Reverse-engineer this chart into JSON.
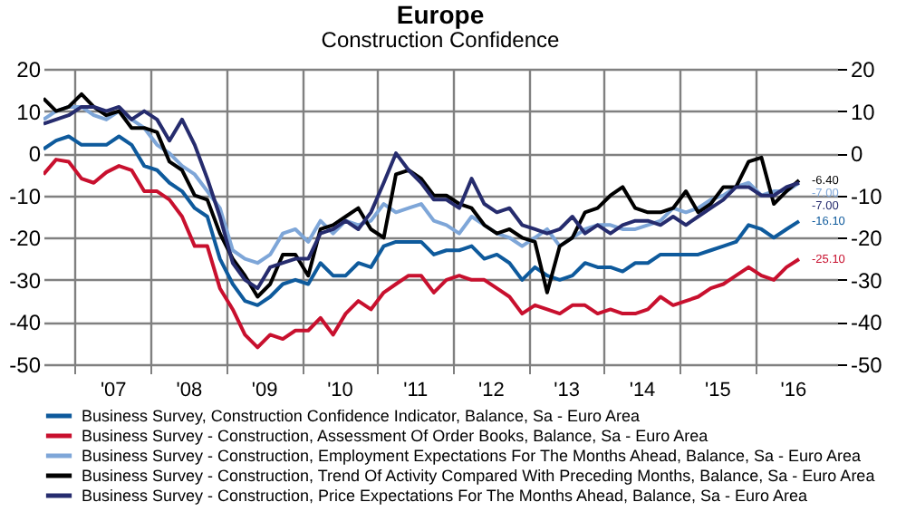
{
  "chart_data": {
    "type": "line",
    "title": "Europe",
    "subtitle": "Construction Confidence",
    "x": [
      "2006-08",
      "2006-10",
      "2006-12",
      "2007-02",
      "2007-04",
      "2007-06",
      "2007-08",
      "2007-10",
      "2007-12",
      "2008-02",
      "2008-04",
      "2008-06",
      "2008-08",
      "2008-10",
      "2008-12",
      "2009-02",
      "2009-04",
      "2009-06",
      "2009-08",
      "2009-10",
      "2009-12",
      "2010-02",
      "2010-04",
      "2010-06",
      "2010-08",
      "2010-10",
      "2010-12",
      "2011-02",
      "2011-04",
      "2011-06",
      "2011-08",
      "2011-10",
      "2011-12",
      "2012-02",
      "2012-04",
      "2012-06",
      "2012-08",
      "2012-10",
      "2012-12",
      "2013-02",
      "2013-04",
      "2013-06",
      "2013-08",
      "2013-10",
      "2013-12",
      "2014-02",
      "2014-04",
      "2014-06",
      "2014-08",
      "2014-10",
      "2014-12",
      "2015-02",
      "2015-04",
      "2015-06",
      "2015-08",
      "2015-10",
      "2015-12",
      "2016-02",
      "2016-04",
      "2016-06",
      "2016-08"
    ],
    "xlim": [
      "2006-08",
      "2017-02"
    ],
    "xticks": [
      {
        "value": "2007-01",
        "label": null
      },
      {
        "value": "2007-07",
        "label": "'07"
      },
      {
        "value": "2008-01",
        "label": null
      },
      {
        "value": "2008-07",
        "label": "'08"
      },
      {
        "value": "2009-01",
        "label": null
      },
      {
        "value": "2009-07",
        "label": "'09"
      },
      {
        "value": "2010-01",
        "label": null
      },
      {
        "value": "2010-07",
        "label": "'10"
      },
      {
        "value": "2011-01",
        "label": null
      },
      {
        "value": "2011-07",
        "label": "'11"
      },
      {
        "value": "2012-01",
        "label": null
      },
      {
        "value": "2012-07",
        "label": "'12"
      },
      {
        "value": "2013-01",
        "label": null
      },
      {
        "value": "2013-07",
        "label": "'13"
      },
      {
        "value": "2014-01",
        "label": null
      },
      {
        "value": "2014-07",
        "label": "'14"
      },
      {
        "value": "2015-01",
        "label": null
      },
      {
        "value": "2015-07",
        "label": "'15"
      },
      {
        "value": "2016-01",
        "label": null
      },
      {
        "value": "2016-07",
        "label": "'16"
      }
    ],
    "ylim": [
      -50,
      20
    ],
    "yticks": [
      -50,
      -40,
      -30,
      -20,
      -10,
      0,
      10,
      20
    ],
    "y2lim": [
      -50,
      20
    ],
    "y2ticks": [
      -50,
      -40,
      -30,
      -20,
      -10,
      0,
      10,
      20
    ],
    "grid": true,
    "legend": "bottom",
    "series": [
      {
        "name": "Business Survey, Construction Confidence Indicator, Balance, Sa - Euro Area",
        "color": "#0e5a9c",
        "values": [
          1,
          3,
          4,
          2,
          2,
          2,
          4,
          2,
          -3,
          -4,
          -7,
          -9,
          -13,
          -15,
          -25,
          -31,
          -35,
          -36,
          -34,
          -31,
          -30,
          -31,
          -26,
          -29,
          -29,
          -26,
          -27,
          -22,
          -21,
          -21,
          -21,
          -24,
          -23,
          -23,
          -22,
          -25,
          -24,
          -26,
          -30,
          -27,
          -29,
          -30,
          -29,
          -26,
          -27,
          -27,
          -28,
          -26,
          -26,
          -24,
          -24,
          -24,
          -24,
          -23,
          -22,
          -21,
          -17,
          -18,
          -20,
          -18,
          -16.1
        ],
        "value_labels": [
          null,
          null,
          null,
          null,
          null,
          null,
          null,
          null,
          null,
          null,
          null,
          null,
          null,
          null,
          null,
          null,
          null,
          null,
          null,
          null,
          null,
          null,
          null,
          null,
          null,
          null,
          null,
          null,
          null,
          null,
          null,
          null,
          null,
          null,
          null,
          null,
          null,
          null,
          null,
          null,
          null,
          null,
          null,
          null,
          null,
          null,
          null,
          null,
          null,
          null,
          null,
          null,
          null,
          null,
          null,
          null,
          null,
          null,
          null,
          null,
          "-16.10"
        ]
      },
      {
        "name": "Business Survey - Construction, Assessment Of Order Books, Balance, Sa - Euro Area",
        "color": "#c8102e",
        "values": [
          -5,
          -1.5,
          -2,
          -6,
          -7,
          -4.5,
          -3,
          -4,
          -9,
          -9,
          -11,
          -15,
          -22,
          -22,
          -32,
          -37,
          -43,
          -46,
          -43,
          -44,
          -42,
          -42,
          -39,
          -43,
          -38,
          -35,
          -37,
          -33,
          -31,
          -29,
          -29,
          -33,
          -30,
          -29,
          -30,
          -30,
          -32,
          -34,
          -38,
          -36,
          -37,
          -38,
          -36,
          -36,
          -38,
          -37,
          -38,
          -38,
          -37,
          -34,
          -36,
          -35,
          -34,
          -32,
          -31,
          -29,
          -27,
          -29,
          -30,
          -27,
          -25.1
        ],
        "value_labels": [
          null,
          null,
          null,
          null,
          null,
          null,
          null,
          null,
          null,
          null,
          null,
          null,
          null,
          null,
          null,
          null,
          null,
          null,
          null,
          null,
          null,
          null,
          null,
          null,
          null,
          null,
          null,
          null,
          null,
          null,
          null,
          null,
          null,
          null,
          null,
          null,
          null,
          null,
          null,
          null,
          null,
          null,
          null,
          null,
          null,
          null,
          null,
          null,
          null,
          null,
          null,
          null,
          null,
          null,
          null,
          null,
          null,
          null,
          null,
          null,
          "-25.10"
        ]
      },
      {
        "name": "Business Survey - Construction, Employment Expectations For The Months Ahead, Balance, Sa - Euro Area",
        "color": "#7ea6d8",
        "values": [
          8,
          10,
          11,
          11,
          9,
          8,
          10,
          8,
          6,
          2,
          0,
          -3,
          -5,
          -9,
          -13,
          -23,
          -25,
          -26,
          -24,
          -19,
          -18,
          -21,
          -16,
          -19,
          -16,
          -17,
          -16,
          -12,
          -14,
          -13,
          -12,
          -16,
          -17,
          -19,
          -15,
          -17,
          -19,
          -20,
          -22,
          -20,
          -18,
          -22,
          -20,
          -18,
          -17,
          -17,
          -18,
          -18,
          -17,
          -16,
          -13,
          -14,
          -13,
          -11,
          -10,
          -8,
          -7,
          -10,
          -9,
          -9,
          -7
        ],
        "value_labels": [
          null,
          null,
          null,
          null,
          null,
          null,
          null,
          null,
          null,
          null,
          null,
          null,
          null,
          null,
          null,
          null,
          null,
          null,
          null,
          null,
          null,
          null,
          null,
          null,
          null,
          null,
          null,
          null,
          null,
          null,
          null,
          null,
          null,
          null,
          null,
          null,
          null,
          null,
          null,
          null,
          null,
          null,
          null,
          null,
          null,
          null,
          null,
          null,
          null,
          null,
          null,
          null,
          null,
          null,
          null,
          null,
          null,
          null,
          null,
          null,
          "-7.00"
        ]
      },
      {
        "name": "Business Survey - Construction, Trend Of Activity Compared With Preceding Months, Balance, Sa - Euro Area",
        "color": "#000000",
        "values": [
          13,
          10,
          11,
          14,
          11,
          9,
          10,
          6,
          6,
          5,
          -2,
          -4,
          -10,
          -11,
          -19,
          -25,
          -29,
          -34,
          -31,
          -24,
          -24,
          -29,
          -18,
          -17,
          -15,
          -13,
          -18,
          -20,
          -5,
          -4,
          -6,
          -10,
          -10,
          -12,
          -13,
          -17,
          -19,
          -18,
          -20,
          -21,
          -33,
          -22,
          -20,
          -14,
          -13,
          -10,
          -8,
          -13,
          -14,
          -14,
          -13,
          -9,
          -14,
          -12,
          -8,
          -8,
          -2,
          -1,
          -12,
          -9,
          -6.4
        ],
        "value_labels": [
          null,
          null,
          null,
          null,
          null,
          null,
          null,
          null,
          null,
          null,
          null,
          null,
          null,
          null,
          null,
          null,
          null,
          null,
          null,
          null,
          null,
          null,
          null,
          null,
          null,
          null,
          null,
          null,
          null,
          null,
          null,
          null,
          null,
          null,
          null,
          null,
          null,
          null,
          null,
          null,
          null,
          null,
          null,
          null,
          null,
          null,
          null,
          null,
          null,
          null,
          null,
          null,
          null,
          null,
          null,
          null,
          null,
          null,
          null,
          null,
          "-6.40"
        ]
      },
      {
        "name": "Business Survey - Construction, Price Expectations For The Months Ahead, Balance, Sa - Euro Area",
        "color": "#262c6e",
        "values": [
          7,
          8,
          9,
          11,
          11,
          10,
          11,
          8,
          10,
          8,
          3,
          8,
          2,
          -6,
          -15,
          -26,
          -30,
          -32,
          -27,
          -26,
          -25,
          -25,
          -19,
          -18,
          -16,
          -18,
          -14,
          -7,
          0,
          -4,
          -7,
          -11,
          -11,
          -13,
          -6,
          -12,
          -14,
          -13,
          -17,
          -18,
          -19,
          -18,
          -15,
          -19,
          -17,
          -19,
          -17,
          -16,
          -16,
          -17,
          -15,
          -17,
          -15,
          -13,
          -11,
          -8,
          -8,
          -10,
          -10,
          -8,
          -7
        ],
        "value_labels": [
          null,
          null,
          null,
          null,
          null,
          null,
          null,
          null,
          null,
          null,
          null,
          null,
          null,
          null,
          null,
          null,
          null,
          null,
          null,
          null,
          null,
          null,
          null,
          null,
          null,
          null,
          null,
          null,
          null,
          null,
          null,
          null,
          null,
          null,
          null,
          null,
          null,
          null,
          null,
          null,
          null,
          null,
          null,
          null,
          null,
          null,
          null,
          null,
          null,
          null,
          null,
          null,
          null,
          null,
          null,
          null,
          null,
          null,
          null,
          null,
          "-7.00"
        ]
      }
    ]
  }
}
